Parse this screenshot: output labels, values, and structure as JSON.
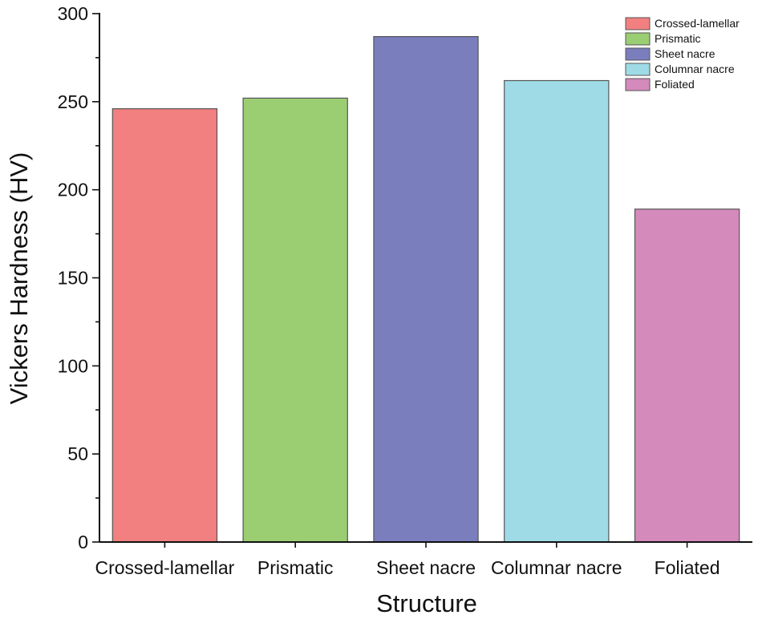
{
  "chart_data": {
    "type": "bar",
    "title": "",
    "xlabel": "Structure",
    "ylabel": "Vickers Hardness (HV)",
    "categories": [
      "Crossed-lamellar",
      "Prismatic",
      "Sheet nacre",
      "Columnar nacre",
      "Foliated"
    ],
    "values": [
      246,
      252,
      287,
      262,
      189
    ],
    "colors": [
      "#f28080",
      "#9bcd73",
      "#7a7ebd",
      "#9edbe6",
      "#d48abb"
    ],
    "ylim": [
      0,
      300
    ],
    "yticks": [
      0,
      50,
      100,
      150,
      200,
      250,
      300
    ],
    "grid": false,
    "legend": {
      "position": "top-right",
      "entries": [
        "Crossed-lamellar",
        "Prismatic",
        "Sheet nacre",
        "Columnar nacre",
        "Foliated"
      ]
    }
  }
}
